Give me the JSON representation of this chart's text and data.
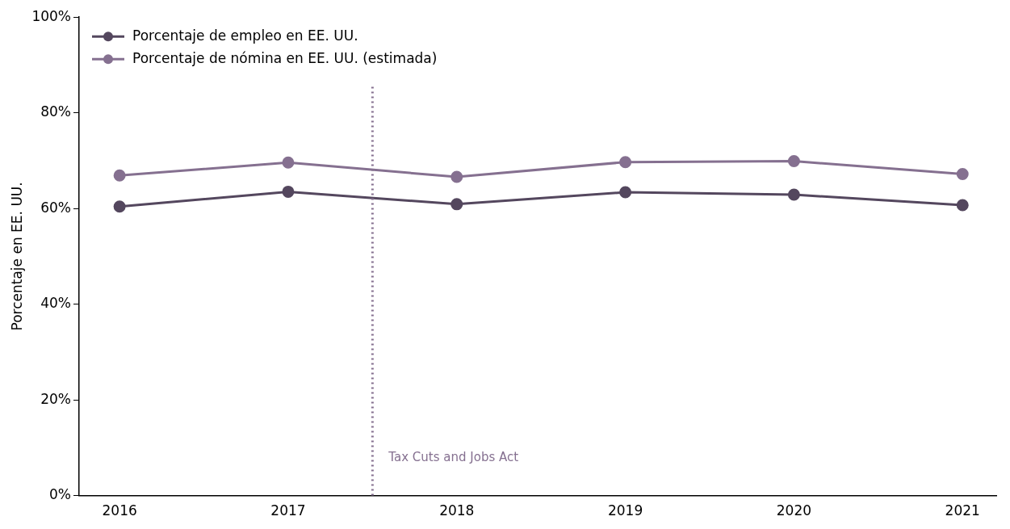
{
  "chart_data": {
    "type": "line",
    "ylabel": "Porcentaje en EE. UU.",
    "x": [
      2016,
      2017,
      2018,
      2019,
      2020,
      2021
    ],
    "xlim": [
      2015.76,
      2021.2
    ],
    "xticks": [
      2016,
      2017,
      2018,
      2019,
      2020,
      2021
    ],
    "ylim": [
      0,
      100
    ],
    "yticks": [
      {
        "value": 0,
        "label": "0%"
      },
      {
        "value": 20,
        "label": "20%"
      },
      {
        "value": 40,
        "label": "40%"
      },
      {
        "value": 60,
        "label": "60%"
      },
      {
        "value": 80,
        "label": "80%"
      },
      {
        "value": 100,
        "label": "100%"
      }
    ],
    "series": [
      {
        "name": "Porcentaje de empleo en EE. UU.",
        "color": "#54475e",
        "values": [
          60.4,
          63.5,
          60.9,
          63.4,
          62.9,
          60.7
        ]
      },
      {
        "name": "Porcentaje de nómina en EE. UU. (estimada)",
        "color": "#857090",
        "values": [
          66.9,
          69.6,
          66.6,
          69.7,
          69.9,
          67.2
        ]
      }
    ],
    "ref_lines": [
      {
        "axis": "x",
        "value": 2017.5,
        "label": "Tax Cuts and Jobs Act",
        "color": "#857090",
        "line_style": "dotted"
      }
    ],
    "marker": "circle",
    "line_style": "solid",
    "grid": false,
    "legend": "top left"
  }
}
